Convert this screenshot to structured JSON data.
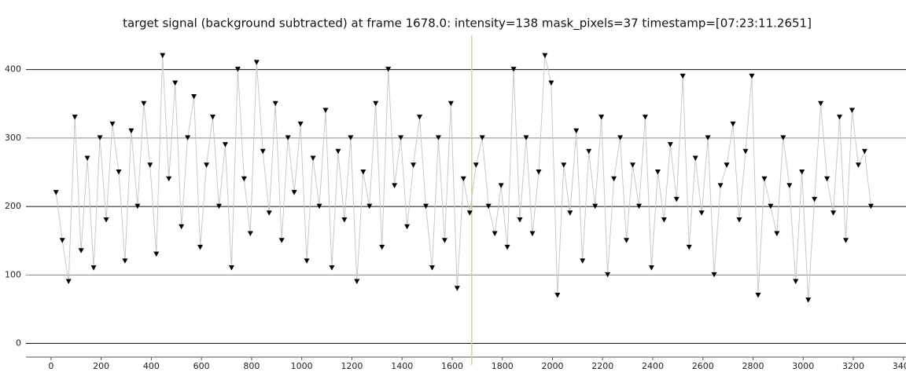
{
  "chart_data": {
    "type": "line",
    "title": "target signal (background subtracted) at frame 1678.0: intensity=138 mask_pixels=37 timestamp=[07:23:11.2651]",
    "x": [
      20,
      45,
      70,
      95,
      120,
      145,
      170,
      195,
      220,
      245,
      270,
      295,
      320,
      345,
      370,
      395,
      420,
      445,
      470,
      495,
      520,
      545,
      570,
      595,
      620,
      645,
      670,
      695,
      720,
      745,
      770,
      795,
      820,
      845,
      870,
      895,
      920,
      945,
      970,
      995,
      1020,
      1045,
      1070,
      1095,
      1120,
      1145,
      1170,
      1195,
      1220,
      1245,
      1270,
      1295,
      1320,
      1345,
      1370,
      1395,
      1420,
      1445,
      1470,
      1495,
      1520,
      1545,
      1570,
      1595,
      1620,
      1645,
      1670,
      1695,
      1720,
      1745,
      1770,
      1795,
      1820,
      1845,
      1870,
      1895,
      1920,
      1945,
      1970,
      1995,
      2020,
      2045,
      2070,
      2095,
      2120,
      2145,
      2170,
      2195,
      2220,
      2245,
      2270,
      2295,
      2320,
      2345,
      2370,
      2395,
      2420,
      2445,
      2470,
      2495,
      2520,
      2545,
      2570,
      2595,
      2620,
      2645,
      2670,
      2695,
      2720,
      2745,
      2770,
      2795,
      2820,
      2845,
      2870,
      2895,
      2920,
      2945,
      2970,
      2995,
      3020,
      3045,
      3070,
      3095,
      3120,
      3145,
      3170,
      3195,
      3220,
      3245,
      3270
    ],
    "values": [
      220,
      150,
      90,
      330,
      135,
      270,
      110,
      300,
      180,
      320,
      250,
      120,
      310,
      200,
      350,
      260,
      130,
      420,
      240,
      380,
      170,
      300,
      360,
      140,
      260,
      330,
      200,
      290,
      110,
      400,
      240,
      160,
      410,
      280,
      190,
      350,
      150,
      300,
      220,
      320,
      120,
      270,
      200,
      340,
      110,
      280,
      180,
      300,
      90,
      250,
      200,
      350,
      140,
      400,
      230,
      300,
      170,
      260,
      330,
      200,
      110,
      300,
      150,
      350,
      80,
      240,
      190,
      260,
      300,
      200,
      160,
      230,
      140,
      400,
      180,
      300,
      160,
      250,
      420,
      380,
      70,
      260,
      190,
      310,
      120,
      280,
      200,
      330,
      100,
      240,
      300,
      150,
      260,
      200,
      330,
      110,
      250,
      180,
      290,
      210,
      390,
      140,
      270,
      190,
      300,
      100,
      230,
      260,
      320,
      180,
      280,
      390,
      70,
      240,
      200,
      160,
      300,
      230,
      90,
      250,
      63,
      210,
      350,
      240,
      190,
      330,
      150,
      340,
      260,
      280,
      200
    ],
    "color": "#000000",
    "line_color": "#c8c8c8",
    "cursor_x": 1678,
    "cursor_color": "#d8c9a0",
    "xlim": [
      -100,
      3410
    ],
    "ylim": [
      -20,
      450
    ],
    "xticks": [
      0,
      200,
      400,
      600,
      800,
      1000,
      1200,
      1400,
      1600,
      1800,
      2000,
      2200,
      2400,
      2600,
      2800,
      3000,
      3200,
      3400
    ],
    "yticks": [
      0,
      100,
      200,
      300,
      400
    ],
    "grid": true
  }
}
